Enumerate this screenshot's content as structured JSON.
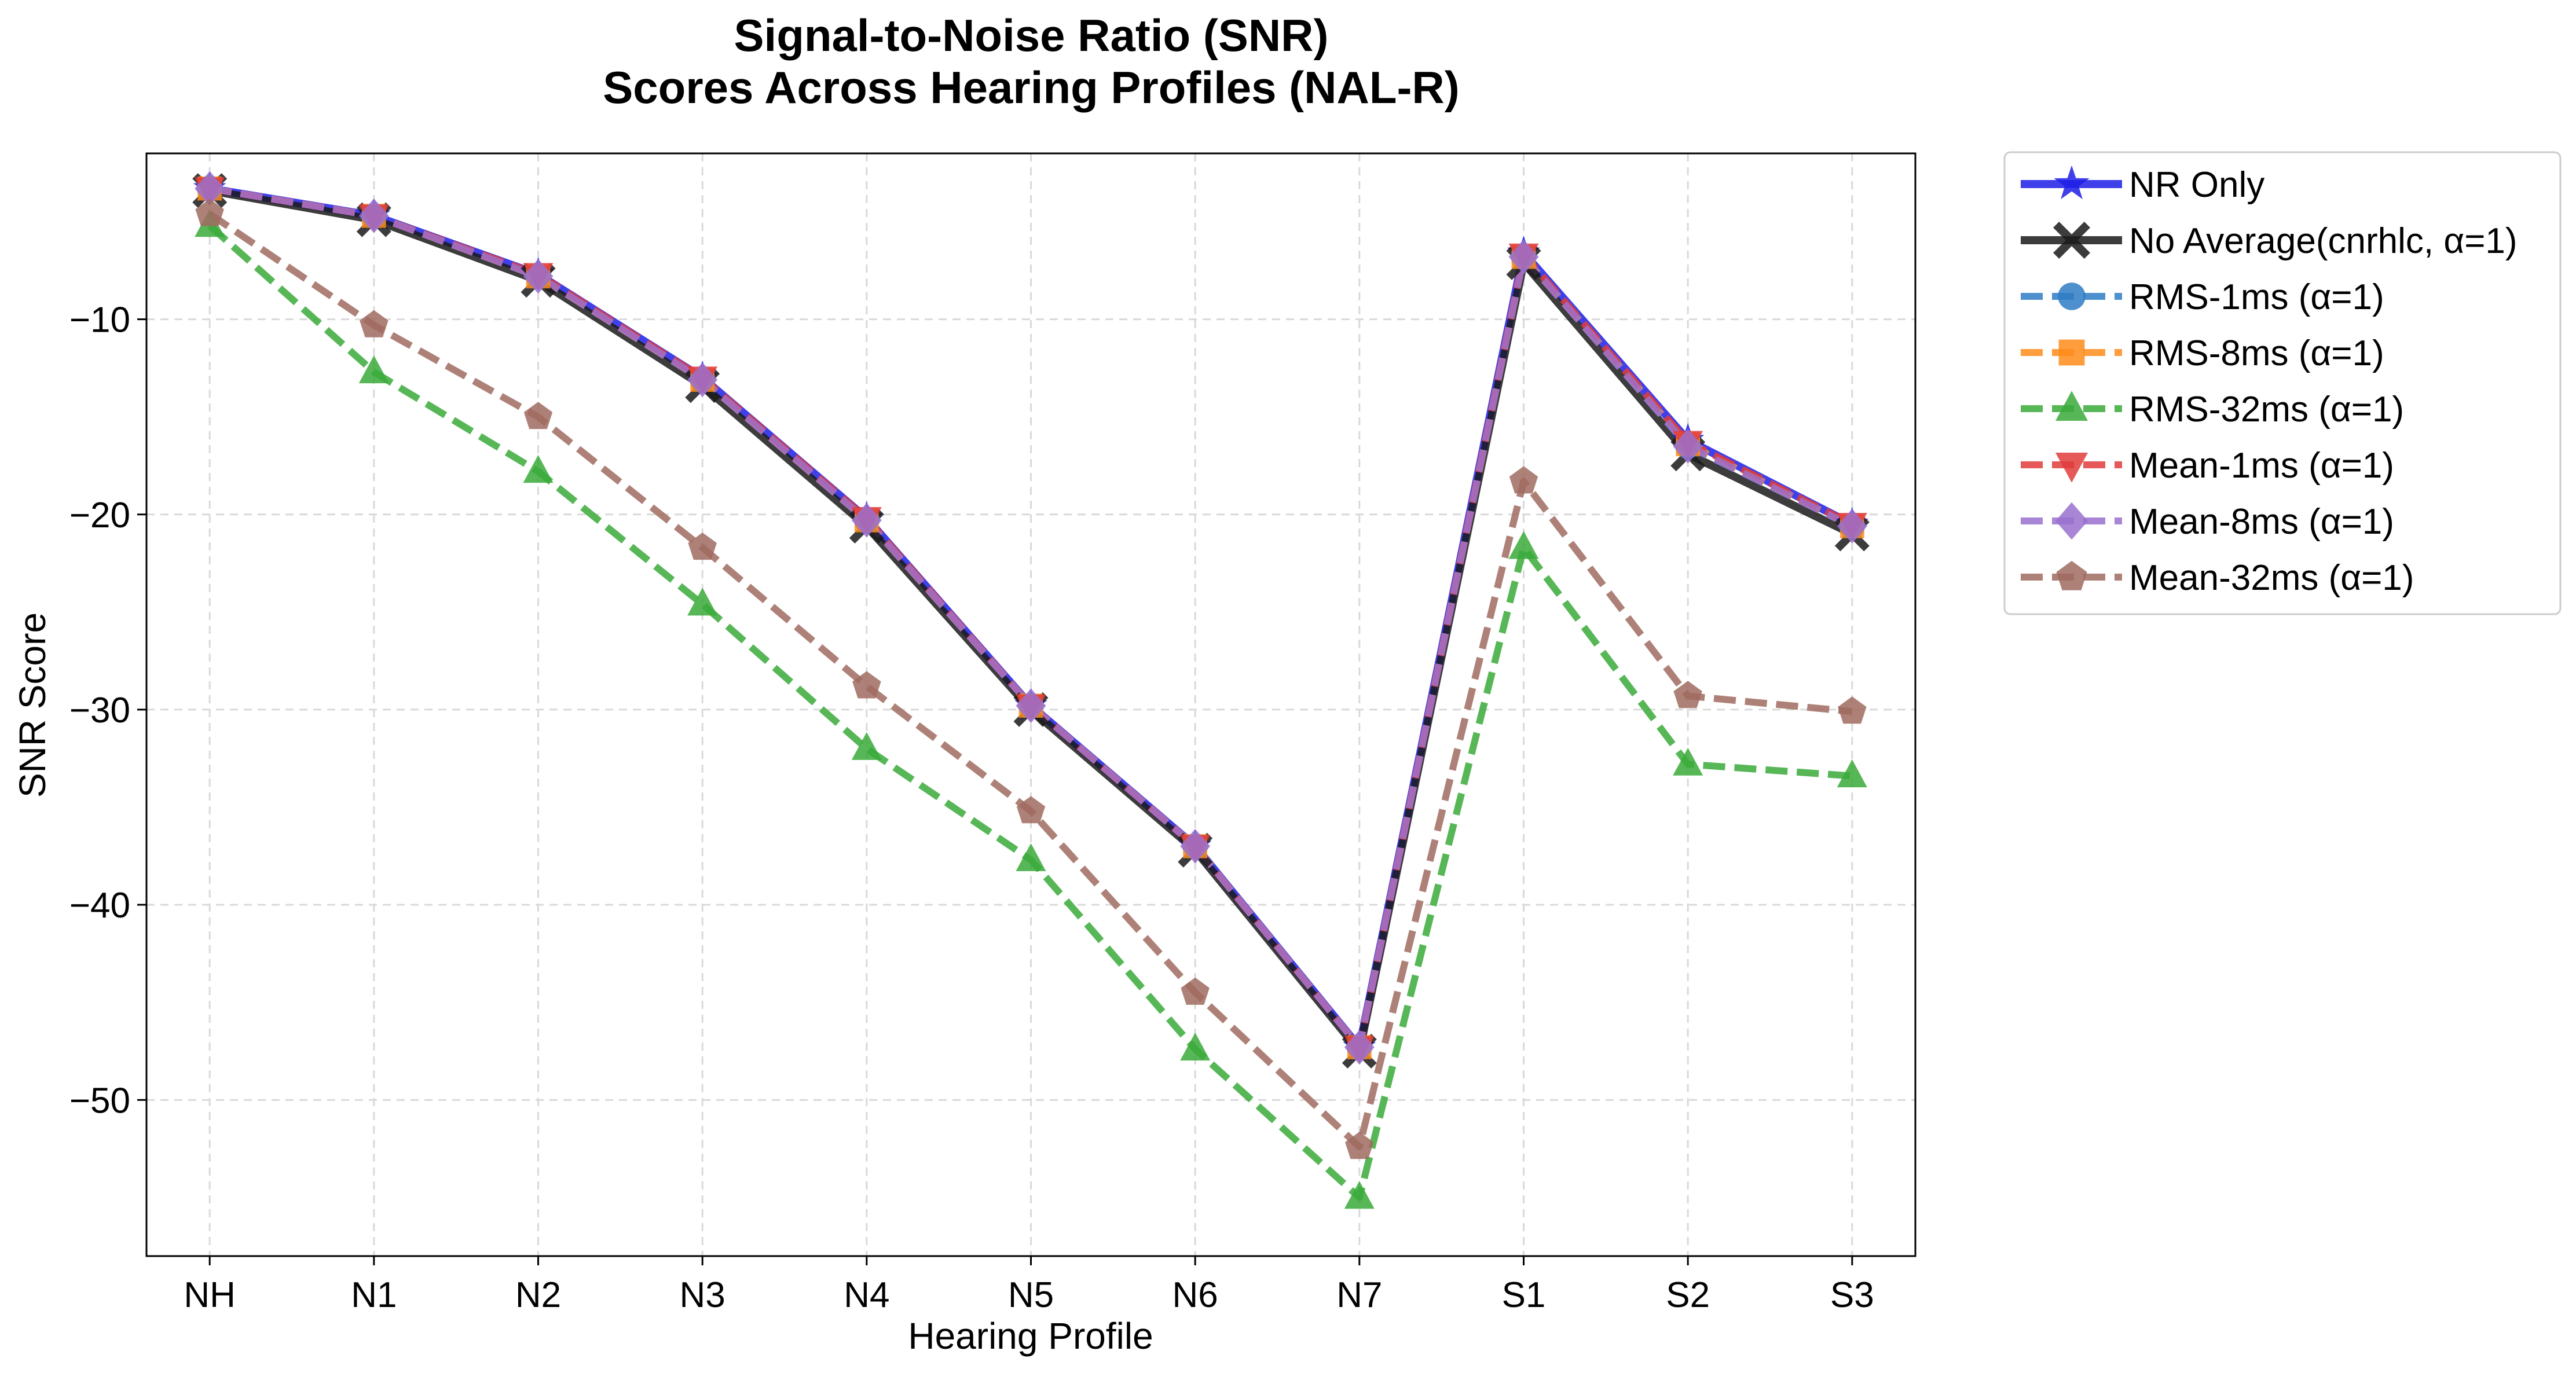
{
  "chart_data": {
    "type": "line",
    "title": "Signal-to-Noise Ratio (SNR)",
    "subtitle": "Scores Across Hearing Profiles (NAL-R)",
    "xlabel": "Hearing Profile",
    "ylabel": "SNR Score",
    "categories": [
      "NH",
      "N1",
      "N2",
      "N3",
      "N4",
      "N5",
      "N6",
      "N7",
      "S1",
      "S2",
      "S3"
    ],
    "ylim": [
      -58,
      -1.5
    ],
    "yticks": [
      -10,
      -20,
      -30,
      -40,
      -50
    ],
    "ytick_labels": [
      "−10",
      "−20",
      "−30",
      "−40",
      "−50"
    ],
    "grid": true,
    "legend_position": "outside-top-right",
    "series": [
      {
        "name": "NR Only",
        "color": "#1f1fe6",
        "marker": "star",
        "dash": "solid",
        "width": 14,
        "values": [
          -3.3,
          -4.7,
          -7.7,
          -13.0,
          -20.2,
          -29.8,
          -37.0,
          -47.3,
          -6.6,
          -16.2,
          -20.5
        ]
      },
      {
        "name": "No Average(cnrhlc, α=1)",
        "color": "#1a1a1a",
        "marker": "x",
        "dash": "solid",
        "width": 14,
        "values": [
          -3.4,
          -4.9,
          -8.0,
          -13.4,
          -20.6,
          -30.0,
          -37.2,
          -47.5,
          -7.1,
          -16.9,
          -21.0
        ]
      },
      {
        "name": "RMS-1ms (α=1)",
        "color": "#2f7cc4",
        "marker": "circle",
        "dash": "dashed",
        "width": 12,
        "values": [
          -3.3,
          -4.7,
          -7.8,
          -13.1,
          -20.3,
          -29.8,
          -37.0,
          -47.3,
          -6.8,
          -16.5,
          -20.6
        ]
      },
      {
        "name": "RMS-8ms (α=1)",
        "color": "#ff8c1a",
        "marker": "square",
        "dash": "dashed",
        "width": 12,
        "values": [
          -3.3,
          -4.7,
          -7.8,
          -13.1,
          -20.3,
          -29.8,
          -37.0,
          -47.3,
          -6.8,
          -16.4,
          -20.6
        ]
      },
      {
        "name": "RMS-32ms (α=1)",
        "color": "#3aaa3a",
        "marker": "triangle-up",
        "dash": "dashed",
        "width": 12,
        "values": [
          -5.2,
          -12.7,
          -17.8,
          -24.6,
          -32.0,
          -37.7,
          -47.4,
          -55.0,
          -21.7,
          -32.8,
          -33.4
        ]
      },
      {
        "name": "Mean-1ms (α=1)",
        "color": "#e03c3c",
        "marker": "triangle-down",
        "dash": "dashed",
        "width": 12,
        "values": [
          -3.3,
          -4.7,
          -7.7,
          -13.0,
          -20.2,
          -29.8,
          -37.0,
          -47.3,
          -6.7,
          -16.3,
          -20.5
        ]
      },
      {
        "name": "Mean-8ms (α=1)",
        "color": "#9a70cf",
        "marker": "diamond",
        "dash": "dashed",
        "width": 12,
        "values": [
          -3.3,
          -4.7,
          -7.8,
          -13.1,
          -20.3,
          -29.8,
          -37.0,
          -47.3,
          -6.8,
          -16.5,
          -20.6
        ]
      },
      {
        "name": "Mean-32ms (α=1)",
        "color": "#a06b60",
        "marker": "pentagon",
        "dash": "dashed",
        "width": 12,
        "values": [
          -4.6,
          -10.3,
          -15.0,
          -21.7,
          -28.8,
          -35.2,
          -44.5,
          -52.4,
          -18.3,
          -29.3,
          -30.1
        ]
      }
    ]
  }
}
